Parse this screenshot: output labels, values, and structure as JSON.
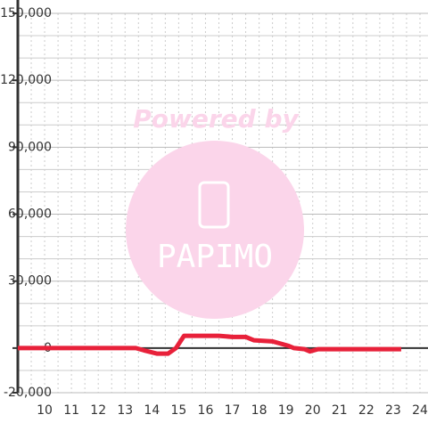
{
  "chart_data": {
    "type": "line",
    "annotations": [
      "Powered by",
      "PAPIMO"
    ],
    "x": [
      9,
      13.4,
      13.7,
      14.2,
      14.6,
      14.9,
      15.2,
      16.5,
      17,
      17.5,
      17.8,
      18.5,
      18.8,
      19.1,
      19.3,
      19.7,
      19.9,
      20.2,
      21,
      23.3
    ],
    "series": [
      {
        "color": "#e8213a",
        "values": [
          0,
          0,
          -1000,
          -2500,
          -2500,
          0,
          5500,
          5500,
          5000,
          5000,
          3500,
          3000,
          2000,
          1000,
          0,
          -500,
          -1500,
          -500,
          -500,
          -500
        ]
      }
    ],
    "xlim": [
      9,
      24.3
    ],
    "xticks": [
      10,
      11,
      12,
      13,
      14,
      15,
      16,
      17,
      18,
      19,
      20,
      21,
      22,
      23,
      24
    ],
    "x_minor_ticks": [
      9.5,
      10.5,
      11.5,
      12.5,
      13.5,
      14.5,
      15.5,
      16.5,
      17.5,
      18.5,
      19.5,
      20.5,
      21.5,
      22.5,
      23.5
    ],
    "ylim": [
      -20000,
      150000
    ],
    "yticks": [
      {
        "value": -20000,
        "label": "-20,000"
      },
      0,
      {
        "value": 30000,
        "label": "30,000"
      },
      {
        "value": 60000,
        "label": "60,000"
      },
      {
        "value": 90000,
        "label": "90,000"
      },
      {
        "value": 120000,
        "label": "120,000"
      },
      {
        "value": 150000,
        "label": "150,000"
      }
    ],
    "y_minor_ticks": [
      -10000,
      10000,
      20000,
      40000,
      50000,
      70000,
      80000,
      100000,
      110000,
      130000,
      140000
    ],
    "grid": true
  }
}
